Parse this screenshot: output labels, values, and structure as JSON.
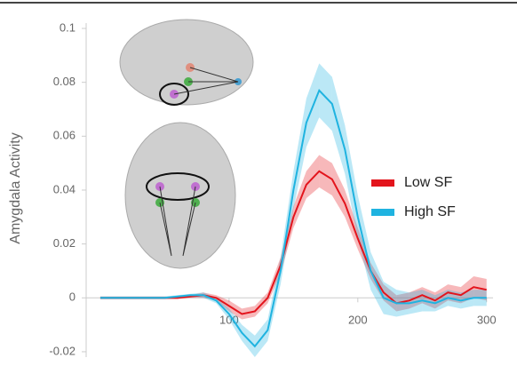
{
  "chart_data": {
    "type": "line",
    "ylabel": "Amygdala Activity",
    "x": [
      0,
      10,
      20,
      30,
      40,
      50,
      60,
      70,
      80,
      90,
      100,
      110,
      120,
      130,
      140,
      150,
      160,
      170,
      180,
      190,
      200,
      210,
      220,
      230,
      240,
      250,
      260,
      270,
      280,
      290,
      300
    ],
    "series": [
      {
        "name": "Low SF",
        "color": "#e3141c",
        "values": [
          0,
          0,
          0,
          0,
          0,
          0,
          0,
          0.0005,
          0.001,
          0,
          -0.003,
          -0.006,
          -0.005,
          0,
          0.012,
          0.03,
          0.042,
          0.047,
          0.044,
          0.035,
          0.022,
          0.01,
          0.002,
          -0.002,
          -0.001,
          0.001,
          -0.001,
          0.002,
          0.001,
          0.004,
          0.003
        ],
        "errors": [
          0.0005,
          0.0005,
          0.0005,
          0.0005,
          0.0005,
          0.0005,
          0.0005,
          0.0005,
          0.001,
          0.001,
          0.002,
          0.002,
          0.002,
          0.002,
          0.003,
          0.004,
          0.005,
          0.006,
          0.006,
          0.005,
          0.004,
          0.003,
          0.003,
          0.003,
          0.003,
          0.003,
          0.003,
          0.003,
          0.003,
          0.004,
          0.004
        ]
      },
      {
        "name": "High SF",
        "color": "#1fb3e0",
        "values": [
          0,
          0,
          0,
          0,
          0,
          0,
          0.0005,
          0.001,
          0.001,
          -0.001,
          -0.006,
          -0.013,
          -0.018,
          -0.012,
          0.01,
          0.04,
          0.065,
          0.077,
          0.072,
          0.055,
          0.03,
          0.01,
          0,
          -0.002,
          -0.002,
          -0.001,
          -0.002,
          0,
          -0.001,
          0,
          0
        ],
        "errors": [
          0.0005,
          0.0005,
          0.0005,
          0.0005,
          0.0005,
          0.0005,
          0.0005,
          0.0005,
          0.001,
          0.001,
          0.002,
          0.003,
          0.004,
          0.004,
          0.005,
          0.007,
          0.009,
          0.01,
          0.01,
          0.009,
          0.008,
          0.007,
          0.006,
          0.005,
          0.004,
          0.004,
          0.003,
          0.003,
          0.003,
          0.003,
          0.003
        ]
      }
    ],
    "xlim": [
      -11,
      305
    ],
    "ylim": [
      -0.022,
      0.1
    ],
    "xticks": [
      100,
      200,
      300
    ],
    "yticks": [
      -0.02,
      0,
      0.02,
      0.04,
      0.06,
      0.08,
      0.1
    ],
    "legend": "right"
  }
}
